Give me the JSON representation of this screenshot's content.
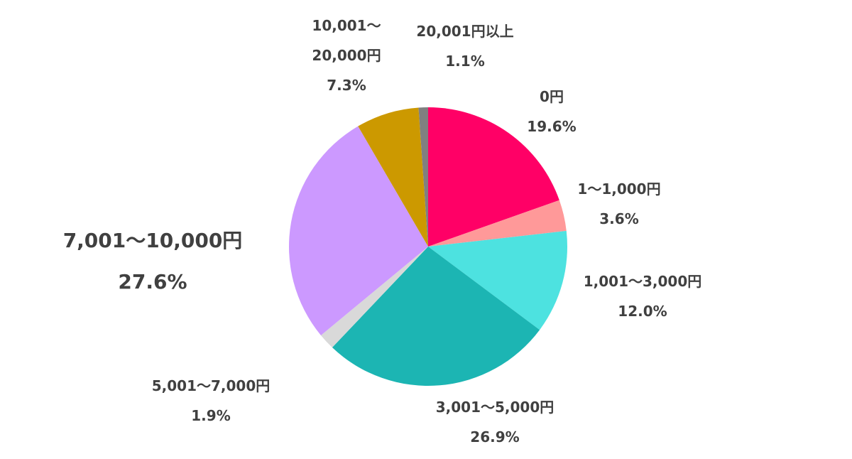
{
  "chart_data": {
    "type": "pie",
    "slices": [
      {
        "label": "0円",
        "value": 19.6,
        "value_label": "19.6%",
        "color": "#ff0066"
      },
      {
        "label": "1～1,000円",
        "value": 3.6,
        "value_label": "3.6%",
        "color": "#ff9999"
      },
      {
        "label": "1,001～3,000円",
        "value": 12.0,
        "value_label": "12.0%",
        "color": "#4de2e0"
      },
      {
        "label": "3,001～5,000円",
        "value": 26.9,
        "value_label": "26.9%",
        "color": "#1cb5b3"
      },
      {
        "label": "5,001～7,000円",
        "value": 1.9,
        "value_label": "1.9%",
        "color": "#d9d9d9"
      },
      {
        "label": "7,001～10,000円",
        "value": 27.6,
        "value_label": "27.6%",
        "color": "#cc99ff"
      },
      {
        "label": "10,001～20,000円",
        "value": 7.3,
        "value_label": "7.3%",
        "color": "#cc9900",
        "label_lines": [
          "10,001～",
          "20,000円"
        ]
      },
      {
        "label": "20,001円以上",
        "value": 1.1,
        "value_label": "1.1%",
        "color": "#808080"
      }
    ]
  }
}
